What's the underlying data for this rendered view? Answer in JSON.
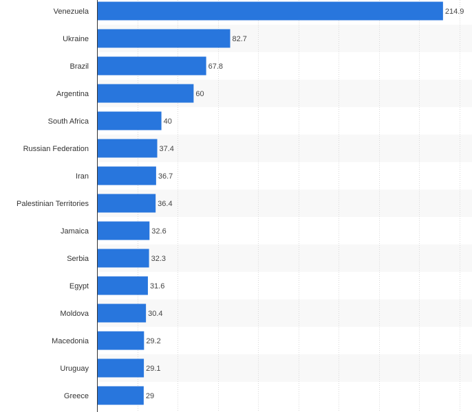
{
  "chart_data": {
    "type": "bar",
    "orientation": "horizontal",
    "title": "",
    "xlabel": "",
    "ylabel": "",
    "xlim": [
      0,
      225
    ],
    "grid": true,
    "bar_color": "#2876dd",
    "categories": [
      "Venezuela",
      "Ukraine",
      "Brazil",
      "Argentina",
      "South Africa",
      "Russian Federation",
      "Iran",
      "Palestinian Territories",
      "Jamaica",
      "Serbia",
      "Egypt",
      "Moldova",
      "Macedonia",
      "Uruguay",
      "Greece"
    ],
    "values": [
      214.9,
      82.7,
      67.8,
      60,
      40,
      37.4,
      36.7,
      36.4,
      32.6,
      32.3,
      31.6,
      30.4,
      29.2,
      29.1,
      29
    ],
    "value_labels": [
      "214.9",
      "82.7",
      "67.8",
      "60",
      "40",
      "37.4",
      "36.7",
      "36.4",
      "32.6",
      "32.3",
      "31.6",
      "30.4",
      "29.2",
      "29.1",
      "29"
    ]
  }
}
